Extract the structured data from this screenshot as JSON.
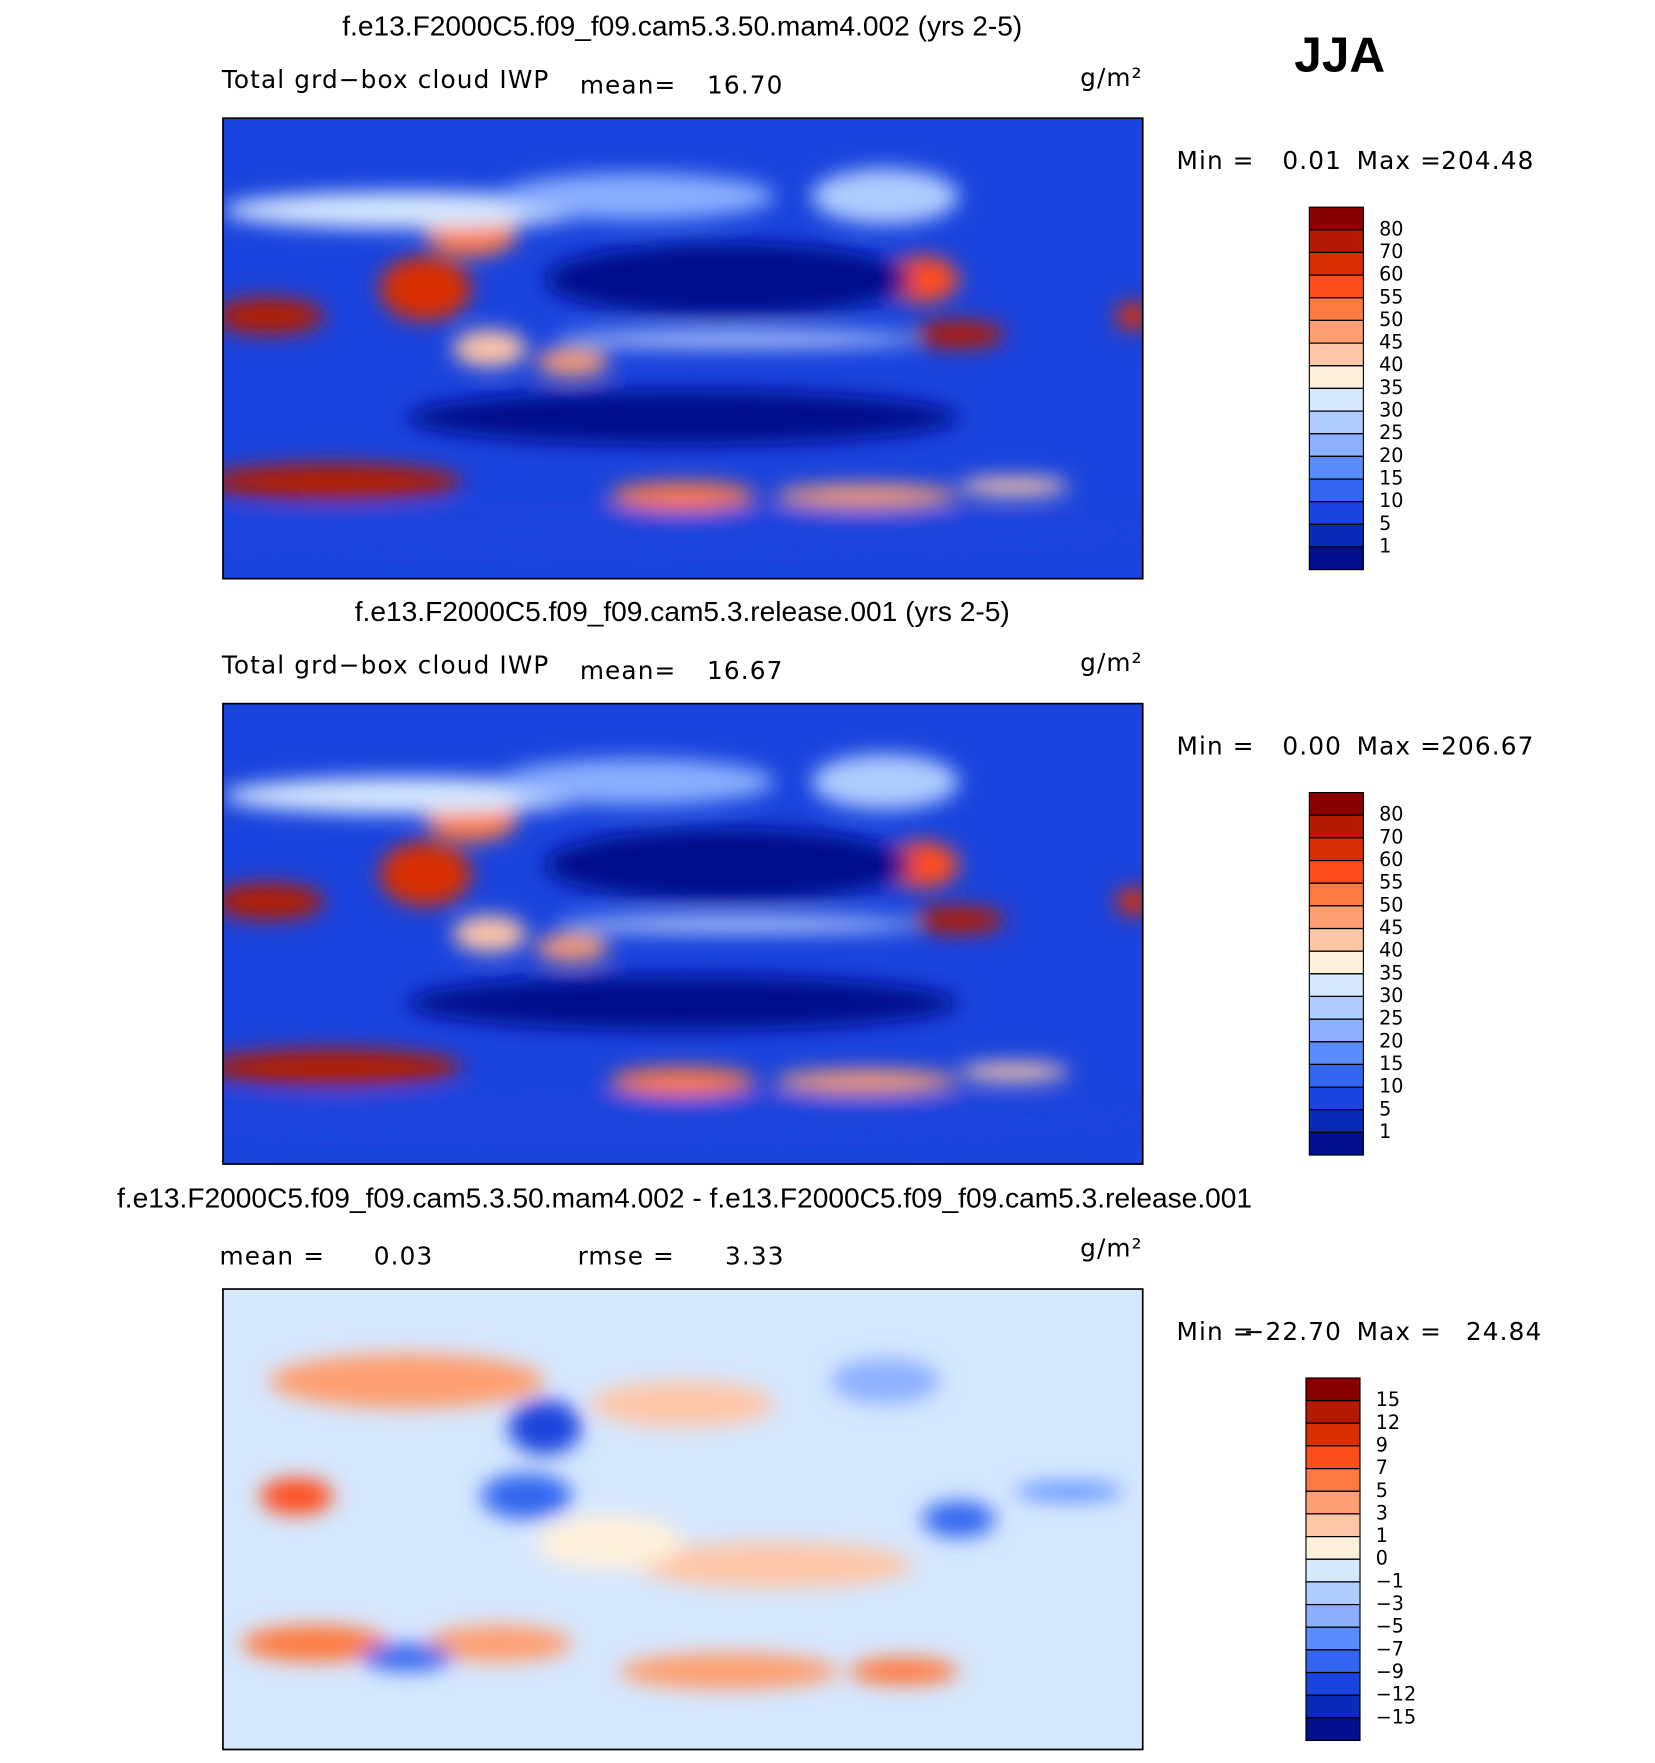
{
  "figure_label": "JJA",
  "panels": [
    {
      "title": "f.e13.F2000C5.f09_f09.cam5.3.50.mam4.002 (yrs 2-5)",
      "variable": "Total grd−box cloud IWP",
      "stat_label": "mean=",
      "stat": "16.70",
      "units": "g/m²",
      "min_label": "Min =",
      "min": "0.01",
      "max_label": "Max =",
      "max": "204.48",
      "levels": [
        80,
        70,
        60,
        55,
        50,
        45,
        40,
        35,
        30,
        25,
        20,
        15,
        10,
        5,
        1
      ],
      "colors": [
        "#8a0000",
        "#b31a00",
        "#d92f00",
        "#ff4d1a",
        "#ff7a40",
        "#ff9e70",
        "#ffc6a6",
        "#fff0dc",
        "#d6e8ff",
        "#b0cdff",
        "#8cb0ff",
        "#5a8cff",
        "#3366f0",
        "#1a44dd",
        "#0a2ab8",
        "#00108c"
      ]
    },
    {
      "title": "f.e13.F2000C5.f09_f09.cam5.3.release.001 (yrs 2-5)",
      "variable": "Total grd−box cloud IWP",
      "stat_label": "mean=",
      "stat": "16.67",
      "units": "g/m²",
      "min_label": "Min =",
      "min": "0.00",
      "max_label": "Max =",
      "max": "206.67",
      "levels": [
        80,
        70,
        60,
        55,
        50,
        45,
        40,
        35,
        30,
        25,
        20,
        15,
        10,
        5,
        1
      ],
      "colors": [
        "#8a0000",
        "#b31a00",
        "#d92f00",
        "#ff4d1a",
        "#ff7a40",
        "#ff9e70",
        "#ffc6a6",
        "#fff0dc",
        "#d6e8ff",
        "#b0cdff",
        "#8cb0ff",
        "#5a8cff",
        "#3366f0",
        "#1a44dd",
        "#0a2ab8",
        "#00108c"
      ]
    },
    {
      "title": "f.e13.F2000C5.f09_f09.cam5.3.50.mam4.002 - f.e13.F2000C5.f09_f09.cam5.3.release.001",
      "stat_label": "mean =",
      "stat": "0.03",
      "stat2_label": "rmse =",
      "stat2": "3.33",
      "units": "g/m²",
      "min_label": "Min =",
      "min": "−22.70",
      "max_label": "Max =",
      "max": "24.84",
      "levels": [
        15,
        12,
        9,
        7,
        5,
        3,
        1,
        0,
        {
          "value": -1,
          "label": "−1"
        },
        {
          "value": -3,
          "label": "−3"
        },
        {
          "value": -5,
          "label": "−5"
        },
        {
          "value": -7,
          "label": "−7"
        },
        {
          "value": -9,
          "label": "−9"
        },
        {
          "value": -12,
          "label": "−12"
        },
        {
          "value": -15,
          "label": "−15"
        }
      ],
      "colors": [
        "#8a0000",
        "#b31a00",
        "#d92f00",
        "#ff4d1a",
        "#ff7a40",
        "#ff9e70",
        "#ffc6a6",
        "#fff0dc",
        "#d6e8ff",
        "#b0cdff",
        "#8cb0ff",
        "#5a8cff",
        "#3366f0",
        "#1a44dd",
        "#0a2ab8",
        "#00108c"
      ]
    }
  ]
}
